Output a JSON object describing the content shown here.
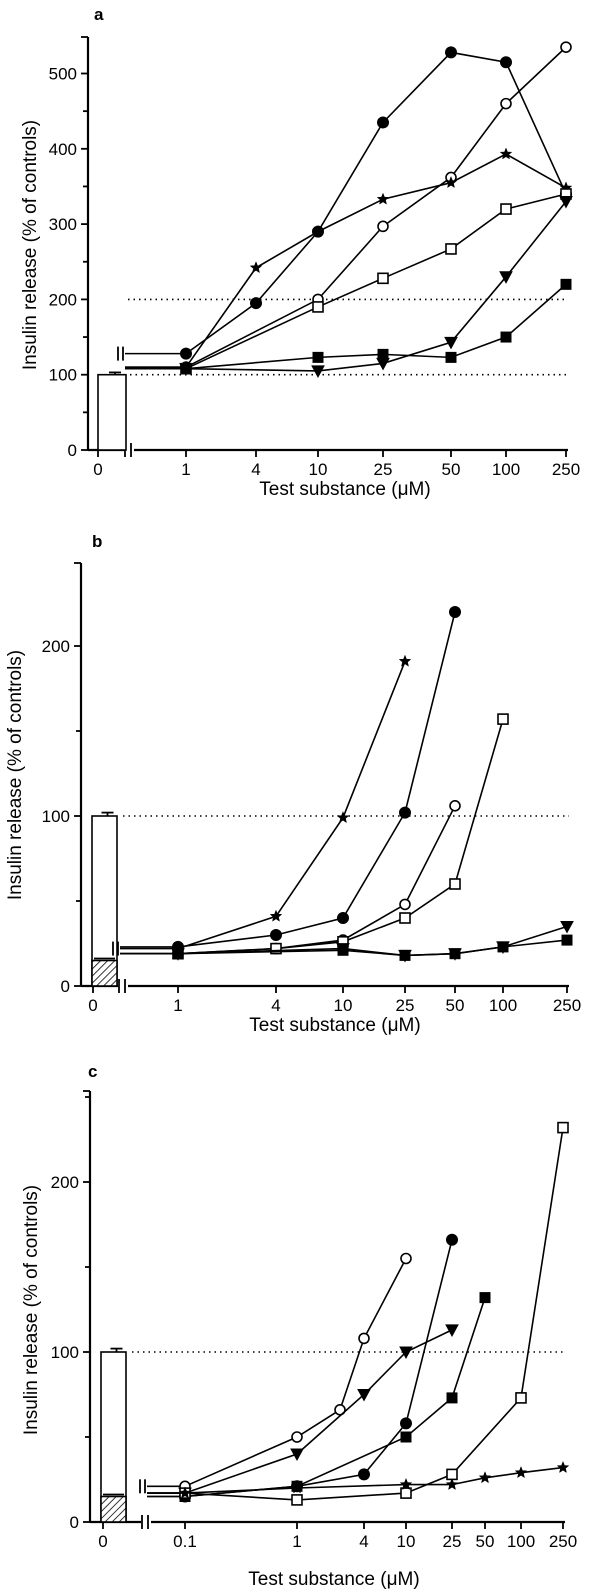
{
  "chart_data": [
    {
      "type": "line",
      "panel_label": "a",
      "xlabel": "Test substance (μM)",
      "ylabel": "Insulin release (% of controls)",
      "x_ticks": [
        "0",
        "1",
        "4",
        "10",
        "25",
        "50",
        "100",
        "250"
      ],
      "y_ticks": [
        "0",
        "100",
        "200",
        "300",
        "400",
        "500"
      ],
      "ylim": [
        0,
        550
      ],
      "reference_lines": [
        100,
        200
      ],
      "control_bar": {
        "x": "0",
        "value": 100,
        "error": 3
      },
      "series": [
        {
          "marker": "circle-filled",
          "x": [
            1,
            4,
            10,
            25,
            50,
            100,
            250
          ],
          "values": [
            128,
            195,
            290,
            435,
            528,
            515,
            340
          ]
        },
        {
          "marker": "circle-open",
          "x": [
            1,
            10,
            25,
            50,
            100,
            250
          ],
          "values": [
            110,
            200,
            297,
            362,
            460,
            535
          ]
        },
        {
          "marker": "star",
          "x": [
            1,
            4,
            10,
            25,
            50,
            100,
            250
          ],
          "values": [
            110,
            242,
            290,
            333,
            355,
            393,
            348
          ]
        },
        {
          "marker": "square-open",
          "x": [
            1,
            10,
            25,
            50,
            100,
            250
          ],
          "values": [
            108,
            190,
            228,
            267,
            320,
            340
          ]
        },
        {
          "marker": "triangle-filled",
          "x": [
            1,
            10,
            25,
            50,
            100,
            250
          ],
          "values": [
            108,
            105,
            115,
            143,
            230,
            330
          ]
        },
        {
          "marker": "square-filled",
          "x": [
            1,
            10,
            25,
            50,
            100,
            250
          ],
          "values": [
            108,
            123,
            127,
            123,
            150,
            220
          ]
        }
      ]
    },
    {
      "type": "line",
      "panel_label": "b",
      "xlabel": "Test substance (μM)",
      "ylabel": "Insulin release (% of controls)",
      "x_ticks": [
        "0",
        "1",
        "4",
        "10",
        "25",
        "50",
        "100",
        "250"
      ],
      "y_ticks": [
        "0",
        "100",
        "200"
      ],
      "ylim": [
        0,
        250
      ],
      "reference_lines": [
        100
      ],
      "control_bar": {
        "x": "0",
        "value": 100,
        "error": 2,
        "hatched_value": 15
      },
      "series": [
        {
          "marker": "star",
          "x": [
            1,
            4,
            10,
            25
          ],
          "values": [
            22,
            41,
            99,
            191
          ]
        },
        {
          "marker": "circle-filled",
          "x": [
            1,
            4,
            10,
            25,
            50
          ],
          "values": [
            23,
            30,
            40,
            102,
            220
          ]
        },
        {
          "marker": "circle-open",
          "x": [
            1,
            4,
            10,
            25,
            50
          ],
          "values": [
            19,
            22,
            27,
            48,
            106
          ]
        },
        {
          "marker": "square-open",
          "x": [
            1,
            4,
            10,
            25,
            50,
            100
          ],
          "values": [
            19,
            22,
            26,
            40,
            60,
            157
          ]
        },
        {
          "marker": "triangle-filled",
          "x": [
            1,
            10,
            25,
            50,
            100,
            250
          ],
          "values": [
            19,
            22,
            18,
            19,
            23,
            35
          ]
        },
        {
          "marker": "square-filled",
          "x": [
            1,
            10,
            25,
            50,
            100,
            250
          ],
          "values": [
            19,
            21,
            18,
            19,
            23,
            27
          ]
        }
      ]
    },
    {
      "type": "line",
      "panel_label": "c",
      "xlabel": "Test substance (μM)",
      "ylabel": "Insulin release (% of controls)",
      "x_ticks": [
        "0",
        "0.1",
        "1",
        "4",
        "10",
        "25",
        "50",
        "100",
        "250"
      ],
      "y_ticks": [
        "0",
        "100",
        "200"
      ],
      "ylim": [
        0,
        250
      ],
      "reference_lines": [
        100
      ],
      "control_bar": {
        "x": "0",
        "value": 100,
        "error": 2,
        "hatched_value": 15
      },
      "series": [
        {
          "marker": "circle-open",
          "x": [
            0.1,
            1,
            2.5,
            4,
            10
          ],
          "values": [
            21,
            50,
            66,
            108,
            155
          ]
        },
        {
          "marker": "triangle-filled",
          "x": [
            0.1,
            1,
            4,
            10,
            25
          ],
          "values": [
            17,
            40,
            75,
            100,
            113
          ]
        },
        {
          "marker": "circle-filled",
          "x": [
            0.1,
            1,
            4,
            10,
            25
          ],
          "values": [
            15,
            21,
            28,
            58,
            166
          ]
        },
        {
          "marker": "square-filled",
          "x": [
            0.1,
            1,
            10,
            25,
            50
          ],
          "values": [
            15,
            21,
            50,
            73,
            132
          ]
        },
        {
          "marker": "square-open",
          "x": [
            0.1,
            1,
            10,
            25,
            100,
            250
          ],
          "values": [
            17,
            13,
            17,
            28,
            73,
            232
          ]
        },
        {
          "marker": "star",
          "x": [
            0.1,
            1,
            10,
            25,
            50,
            100,
            250
          ],
          "values": [
            17,
            20,
            22,
            22,
            26,
            29,
            32
          ]
        }
      ]
    }
  ]
}
